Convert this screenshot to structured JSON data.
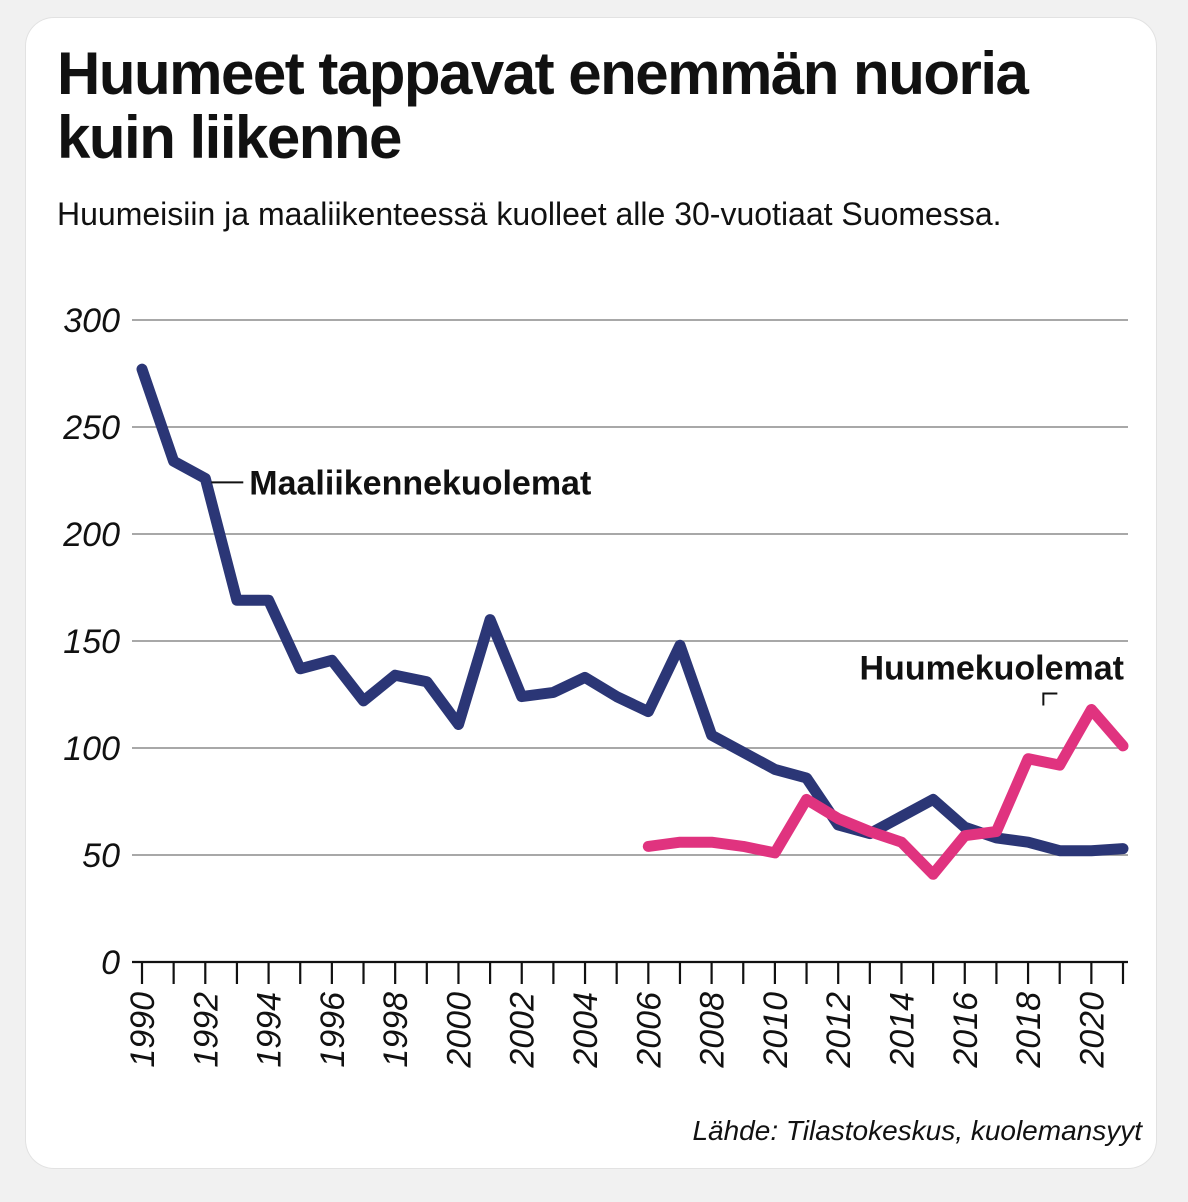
{
  "title": "Huumeet tappavat enemmän nuoria kuin liikenne",
  "subtitle": "Huumeisiin ja maaliikenteessä kuolleet alle 30-vuotiaat Suomessa.",
  "source": "Lähde: Tilastokeskus, kuolemansyyt",
  "colors": {
    "background": "#ffffff",
    "grid": "#8c8c8c",
    "axis": "#111111",
    "text": "#111111",
    "traffic": "#2b3676",
    "drugs": "#e0337f"
  },
  "chart_data": {
    "type": "line",
    "title": "Huumeet tappavat enemmän nuoria kuin liikenne",
    "subtitle": "Huumeisiin ja maaliikenteessä kuolleet alle 30-vuotiaat Suomessa.",
    "xlabel": "",
    "ylabel": "",
    "xlim": [
      1990,
      2021
    ],
    "ylim": [
      0,
      300
    ],
    "yticks": [
      0,
      50,
      100,
      150,
      200,
      250,
      300
    ],
    "xticks": [
      1990,
      1992,
      1994,
      1996,
      1998,
      2000,
      2002,
      2004,
      2006,
      2008,
      2010,
      2012,
      2014,
      2016,
      2018,
      2020
    ],
    "grid": true,
    "legend": "inline labels",
    "series": [
      {
        "name": "Maaliikennekuolemat",
        "color": "#2b3676",
        "x": [
          1990,
          1991,
          1992,
          1993,
          1994,
          1995,
          1996,
          1997,
          1998,
          1999,
          2000,
          2001,
          2002,
          2003,
          2004,
          2005,
          2006,
          2007,
          2008,
          2009,
          2010,
          2011,
          2012,
          2013,
          2014,
          2015,
          2016,
          2017,
          2018,
          2019,
          2020,
          2021
        ],
        "values": [
          277,
          234,
          226,
          169,
          169,
          137,
          141,
          122,
          134,
          131,
          111,
          160,
          124,
          126,
          133,
          124,
          117,
          148,
          106,
          98,
          90,
          86,
          64,
          60,
          68,
          76,
          63,
          58,
          56,
          52,
          52,
          53
        ]
      },
      {
        "name": "Huumekuolemat",
        "color": "#e0337f",
        "x": [
          2006,
          2007,
          2008,
          2009,
          2010,
          2011,
          2012,
          2013,
          2014,
          2015,
          2016,
          2017,
          2018,
          2019,
          2020,
          2021
        ],
        "values": [
          54,
          56,
          56,
          54,
          51,
          76,
          67,
          61,
          56,
          41,
          59,
          61,
          95,
          92,
          118,
          101
        ]
      }
    ]
  }
}
